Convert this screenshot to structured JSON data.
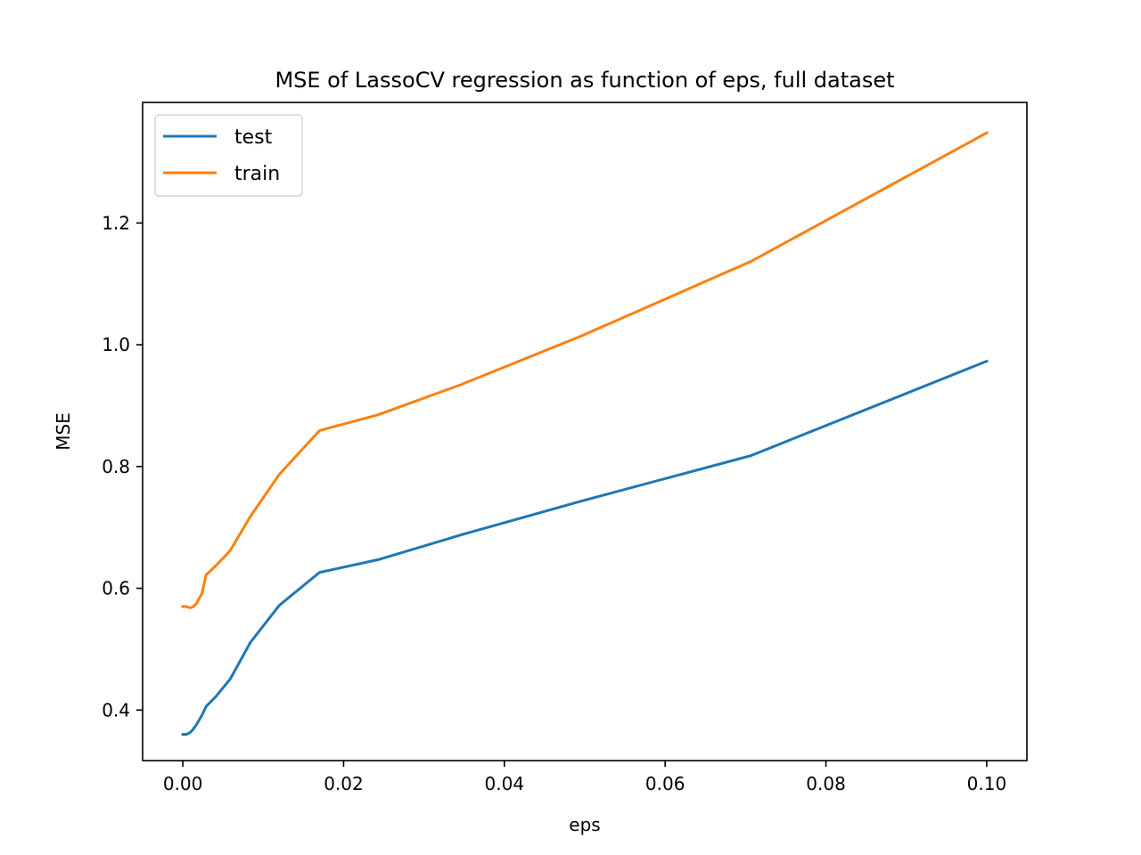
{
  "chart_data": {
    "type": "line",
    "title": "MSE of LassoCV regression as function of eps, full dataset",
    "xlabel": "eps",
    "ylabel": "MSE",
    "xlim": [
      -0.005,
      0.105
    ],
    "ylim": [
      0.317,
      1.398
    ],
    "xticks": [
      0.0,
      0.02,
      0.04,
      0.06,
      0.08,
      0.1
    ],
    "xtick_labels": [
      "0.00",
      "0.02",
      "0.04",
      "0.06",
      "0.08",
      "0.10"
    ],
    "yticks": [
      0.4,
      0.6,
      0.8,
      1.0,
      1.2
    ],
    "ytick_labels": [
      "0.4",
      "0.6",
      "0.8",
      "1.0",
      "1.2"
    ],
    "grid": false,
    "legend_position": "top-left",
    "series": [
      {
        "name": "test",
        "color": "#1f77b4",
        "x": [
          0.0,
          0.0004,
          0.0006,
          0.0009,
          0.0012,
          0.0017,
          0.0024,
          0.0029,
          0.0041,
          0.0059,
          0.0084,
          0.012,
          0.017,
          0.0243,
          0.0347,
          0.0495,
          0.0707,
          0.1
        ],
        "y": [
          0.36,
          0.36,
          0.361,
          0.363,
          0.367,
          0.376,
          0.392,
          0.406,
          0.422,
          0.451,
          0.511,
          0.572,
          0.626,
          0.647,
          0.688,
          0.743,
          0.818,
          0.973
        ]
      },
      {
        "name": "train",
        "color": "#ff7f0e",
        "x": [
          0.0,
          0.0004,
          0.0006,
          0.0009,
          0.0012,
          0.0017,
          0.0024,
          0.0029,
          0.0041,
          0.0059,
          0.0084,
          0.012,
          0.017,
          0.0243,
          0.0347,
          0.0495,
          0.0707,
          0.1
        ],
        "y": [
          0.57,
          0.57,
          0.569,
          0.568,
          0.569,
          0.575,
          0.592,
          0.622,
          0.637,
          0.662,
          0.718,
          0.787,
          0.859,
          0.885,
          0.935,
          1.014,
          1.137,
          1.348
        ]
      }
    ]
  }
}
